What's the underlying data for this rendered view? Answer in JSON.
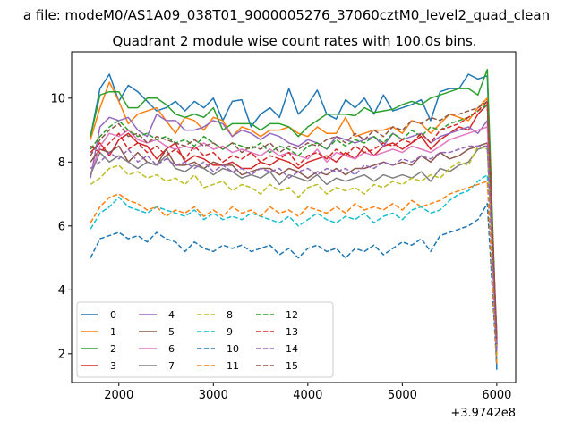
{
  "chart_data": {
    "type": "line",
    "title": "Quadrant 2 module wise count rates with 100.0s bins.",
    "subtitle": "a file: modeM0/AS1A09_038T01_9000005276_37060cztM0_level2_quad_clean",
    "xlabel": "",
    "ylabel": "",
    "x_offset_label": "+3.9742e8",
    "xlim": [
      1500,
      6200
    ],
    "ylim": [
      1.1,
      11.45
    ],
    "x_ticks": [
      2000,
      3000,
      4000,
      5000,
      6000
    ],
    "y_ticks": [
      2,
      4,
      6,
      8,
      10
    ],
    "x_tick_labels": [
      "2000",
      "3000",
      "4000",
      "5000",
      "6000"
    ],
    "y_tick_labels": [
      "2",
      "4",
      "6",
      "8",
      "10"
    ],
    "grid": false,
    "legend_position": "lower-left",
    "legend_columns": 4,
    "x": [
      1700,
      1800,
      1900,
      2000,
      2100,
      2200,
      2300,
      2400,
      2500,
      2600,
      2700,
      2800,
      2900,
      3000,
      3100,
      3200,
      3300,
      3400,
      3500,
      3600,
      3700,
      3800,
      3900,
      4000,
      4100,
      4200,
      4300,
      4400,
      4500,
      4600,
      4700,
      4800,
      4900,
      5000,
      5100,
      5200,
      5300,
      5400,
      5500,
      5600,
      5700,
      5800,
      5900,
      6000
    ],
    "series": [
      {
        "name": "0",
        "color": "#1f77b4",
        "dash": "solid",
        "values": [
          8.8,
          10.3,
          10.75,
          9.9,
          10.4,
          10.2,
          9.9,
          9.6,
          9.7,
          9.9,
          9.6,
          9.9,
          9.7,
          10.0,
          9.3,
          9.9,
          9.95,
          9.1,
          9.5,
          9.7,
          9.4,
          10.3,
          9.5,
          9.8,
          10.25,
          9.5,
          9.35,
          9.95,
          9.7,
          10.0,
          9.5,
          10.1,
          9.6,
          9.7,
          9.8,
          9.95,
          9.3,
          10.2,
          10.3,
          10.3,
          10.75,
          10.6,
          10.7,
          1.5
        ]
      },
      {
        "name": "1",
        "color": "#ff7f0e",
        "dash": "solid",
        "values": [
          8.7,
          9.7,
          10.5,
          9.9,
          9.2,
          9.5,
          9.6,
          9.7,
          9.3,
          8.9,
          9.4,
          9.3,
          9.0,
          9.4,
          9.3,
          8.8,
          9.1,
          9.0,
          8.8,
          9.0,
          9.0,
          9.1,
          8.9,
          8.8,
          9.1,
          8.9,
          8.9,
          9.4,
          8.8,
          8.9,
          9.0,
          9.0,
          9.1,
          8.9,
          9.3,
          9.2,
          8.9,
          9.2,
          9.5,
          9.4,
          9.3,
          9.7,
          10.0,
          2.0
        ]
      },
      {
        "name": "2",
        "color": "#2ca02c",
        "dash": "solid",
        "values": [
          8.8,
          10.1,
          10.2,
          10.2,
          9.7,
          9.7,
          10.0,
          10.0,
          9.8,
          9.5,
          9.4,
          9.5,
          9.4,
          9.7,
          9.0,
          9.2,
          9.2,
          9.2,
          9.0,
          9.2,
          9.2,
          9.1,
          8.8,
          9.1,
          9.3,
          9.5,
          9.5,
          9.5,
          9.45,
          9.7,
          9.55,
          9.6,
          9.65,
          9.8,
          9.9,
          9.8,
          10.0,
          10.1,
          10.2,
          10.3,
          10.3,
          10.1,
          10.9,
          2.2
        ]
      },
      {
        "name": "3",
        "color": "#d62728",
        "dash": "solid",
        "values": [
          8.3,
          8.6,
          8.2,
          8.7,
          8.9,
          8.6,
          8.5,
          8.1,
          8.4,
          8.6,
          8.0,
          8.2,
          8.1,
          7.9,
          7.9,
          8.0,
          7.8,
          7.8,
          8.0,
          7.9,
          8.1,
          8.0,
          7.8,
          8.0,
          8.1,
          8.2,
          8.0,
          8.3,
          8.1,
          8.5,
          8.2,
          8.5,
          8.6,
          8.4,
          8.6,
          8.8,
          8.4,
          8.7,
          8.9,
          9.1,
          9.0,
          9.5,
          9.8,
          2.3
        ]
      },
      {
        "name": "4",
        "color": "#9467bd",
        "dash": "solid",
        "values": [
          7.5,
          9.1,
          9.4,
          9.3,
          9.4,
          9.0,
          8.8,
          9.5,
          9.3,
          9.3,
          9.0,
          9.0,
          9.1,
          9.3,
          9.2,
          8.8,
          9.0,
          8.9,
          8.7,
          8.9,
          8.8,
          8.6,
          8.5,
          8.7,
          8.6,
          8.4,
          8.8,
          8.7,
          8.6,
          8.7,
          8.8,
          8.5,
          8.9,
          8.7,
          8.8,
          8.9,
          8.6,
          8.8,
          8.9,
          9.0,
          9.1,
          8.9,
          9.3,
          2.6
        ]
      },
      {
        "name": "5",
        "color": "#8c564b",
        "dash": "solid",
        "values": [
          8.0,
          8.4,
          8.3,
          8.5,
          8.0,
          8.3,
          8.0,
          7.9,
          8.4,
          7.9,
          7.9,
          8.0,
          7.8,
          8.0,
          7.9,
          7.9,
          7.6,
          7.7,
          7.8,
          7.8,
          7.6,
          7.8,
          7.7,
          7.5,
          7.7,
          7.6,
          7.8,
          7.6,
          7.8,
          7.8,
          7.9,
          8.0,
          7.9,
          8.0,
          7.9,
          8.2,
          8.0,
          8.3,
          8.1,
          8.2,
          8.4,
          8.5,
          8.6,
          2.4
        ]
      },
      {
        "name": "6",
        "color": "#e377c2",
        "dash": "solid",
        "values": [
          7.6,
          8.5,
          8.9,
          8.8,
          9.0,
          8.7,
          8.6,
          8.7,
          8.5,
          8.4,
          8.5,
          8.4,
          8.6,
          8.4,
          8.5,
          8.3,
          8.4,
          8.3,
          8.2,
          8.4,
          8.2,
          8.3,
          8.2,
          8.1,
          8.4,
          8.0,
          8.3,
          8.2,
          8.1,
          8.3,
          8.2,
          8.3,
          8.4,
          8.3,
          8.5,
          8.4,
          8.3,
          8.5,
          8.7,
          8.8,
          8.9,
          9.0,
          9.1,
          2.5
        ]
      },
      {
        "name": "7",
        "color": "#7f7f7f",
        "dash": "solid",
        "values": [
          7.6,
          8.3,
          8.0,
          8.2,
          8.0,
          7.8,
          8.0,
          7.9,
          8.2,
          7.8,
          7.7,
          7.9,
          7.8,
          7.6,
          7.8,
          7.7,
          7.5,
          7.6,
          7.5,
          7.7,
          7.3,
          7.6,
          7.5,
          7.4,
          7.6,
          7.3,
          7.5,
          7.4,
          7.5,
          7.6,
          7.4,
          7.6,
          7.5,
          7.6,
          7.5,
          7.7,
          7.4,
          7.8,
          7.7,
          7.9,
          8.0,
          8.4,
          8.5,
          2.2
        ]
      },
      {
        "name": "8",
        "color": "#bcbd22",
        "dash": "dash",
        "values": [
          7.3,
          7.5,
          7.8,
          7.9,
          7.6,
          7.7,
          7.5,
          7.6,
          7.4,
          7.5,
          7.3,
          7.6,
          7.2,
          7.3,
          7.4,
          7.1,
          7.3,
          7.2,
          7.0,
          7.3,
          7.1,
          7.2,
          6.9,
          7.2,
          7.3,
          7.0,
          7.2,
          7.1,
          7.2,
          7.0,
          7.3,
          7.2,
          7.4,
          7.3,
          7.5,
          7.4,
          7.6,
          7.5,
          7.8,
          8.0,
          7.9,
          8.5,
          8.4,
          2.0
        ]
      },
      {
        "name": "9",
        "color": "#17becf",
        "dash": "dash",
        "values": [
          5.9,
          6.4,
          6.6,
          6.9,
          6.6,
          6.5,
          6.4,
          6.6,
          6.5,
          6.4,
          6.3,
          6.5,
          6.2,
          6.4,
          6.2,
          6.3,
          6.2,
          6.4,
          6.3,
          6.2,
          6.1,
          6.3,
          6.0,
          6.2,
          6.4,
          6.2,
          6.1,
          6.3,
          6.2,
          6.4,
          6.1,
          6.3,
          6.4,
          6.2,
          6.5,
          6.6,
          6.4,
          6.5,
          6.8,
          7.0,
          7.1,
          7.4,
          7.6,
          1.8
        ]
      },
      {
        "name": "10",
        "color": "#1f77b4",
        "dash": "dash",
        "values": [
          5.0,
          5.6,
          5.7,
          5.8,
          5.6,
          5.7,
          5.5,
          5.8,
          5.6,
          5.5,
          5.2,
          5.5,
          5.3,
          5.2,
          5.4,
          5.3,
          5.4,
          5.2,
          5.3,
          5.4,
          5.1,
          5.3,
          5.0,
          5.3,
          5.4,
          5.2,
          5.3,
          5.0,
          5.3,
          5.2,
          5.4,
          5.1,
          5.3,
          5.5,
          5.4,
          5.6,
          5.2,
          5.7,
          5.8,
          5.9,
          6.0,
          6.2,
          6.7,
          1.6
        ]
      },
      {
        "name": "11",
        "color": "#ff7f0e",
        "dash": "dash",
        "values": [
          6.1,
          6.6,
          6.9,
          7.0,
          6.8,
          6.7,
          6.5,
          6.6,
          6.3,
          6.5,
          6.4,
          6.6,
          6.3,
          6.5,
          6.3,
          6.6,
          6.4,
          6.5,
          6.3,
          6.6,
          6.4,
          6.5,
          6.3,
          6.6,
          6.5,
          6.4,
          6.6,
          6.4,
          6.7,
          6.5,
          6.6,
          6.5,
          6.7,
          6.5,
          6.8,
          6.6,
          6.7,
          6.8,
          7.0,
          7.1,
          7.2,
          7.3,
          7.4,
          1.7
        ]
      },
      {
        "name": "12",
        "color": "#2ca02c",
        "dash": "dash",
        "values": [
          8.4,
          8.8,
          9.1,
          9.3,
          9.0,
          8.8,
          8.9,
          8.7,
          8.8,
          8.6,
          8.7,
          8.5,
          8.8,
          8.6,
          8.4,
          8.6,
          8.5,
          8.4,
          8.6,
          8.3,
          8.5,
          8.4,
          8.2,
          8.5,
          8.6,
          8.4,
          8.7,
          8.5,
          8.7,
          8.6,
          8.8,
          8.6,
          8.9,
          8.7,
          9.0,
          8.8,
          9.1,
          9.0,
          9.2,
          9.3,
          9.4,
          9.6,
          9.8,
          2.4
        ]
      },
      {
        "name": "13",
        "color": "#d62728",
        "dash": "dash",
        "values": [
          8.5,
          8.3,
          8.6,
          8.9,
          8.4,
          8.6,
          8.3,
          8.5,
          8.2,
          8.4,
          8.1,
          8.5,
          8.2,
          8.3,
          8.0,
          8.2,
          8.1,
          8.3,
          8.0,
          8.2,
          8.1,
          8.3,
          7.9,
          8.2,
          8.3,
          8.1,
          8.4,
          8.2,
          8.5,
          8.3,
          8.4,
          8.6,
          8.5,
          8.7,
          8.6,
          8.9,
          8.6,
          9.0,
          9.1,
          9.2,
          9.4,
          9.6,
          9.9,
          2.3
        ]
      },
      {
        "name": "14",
        "color": "#9467bd",
        "dash": "dash",
        "values": [
          7.8,
          8.0,
          8.3,
          8.1,
          8.4,
          8.0,
          8.2,
          7.9,
          8.1,
          7.9,
          8.0,
          7.8,
          8.0,
          7.7,
          7.9,
          7.7,
          7.8,
          7.6,
          7.8,
          7.7,
          7.8,
          7.5,
          7.7,
          7.8,
          7.6,
          7.8,
          7.7,
          7.8,
          7.6,
          7.9,
          7.8,
          8.0,
          7.9,
          8.1,
          8.0,
          8.2,
          8.1,
          8.3,
          8.3,
          8.4,
          8.5,
          8.5,
          8.5,
          2.1
        ]
      },
      {
        "name": "15",
        "color": "#8c564b",
        "dash": "dash",
        "values": [
          8.2,
          8.7,
          9.0,
          9.2,
          8.8,
          8.9,
          8.6,
          8.8,
          8.7,
          8.6,
          8.5,
          8.7,
          8.5,
          8.6,
          8.4,
          8.6,
          8.3,
          8.5,
          8.4,
          8.6,
          8.3,
          8.5,
          8.4,
          8.6,
          8.5,
          8.7,
          8.8,
          8.6,
          8.9,
          8.7,
          9.0,
          8.8,
          9.1,
          9.0,
          9.3,
          9.2,
          9.4,
          9.3,
          9.5,
          9.5,
          9.6,
          9.7,
          9.9,
          2.5
        ]
      }
    ]
  }
}
